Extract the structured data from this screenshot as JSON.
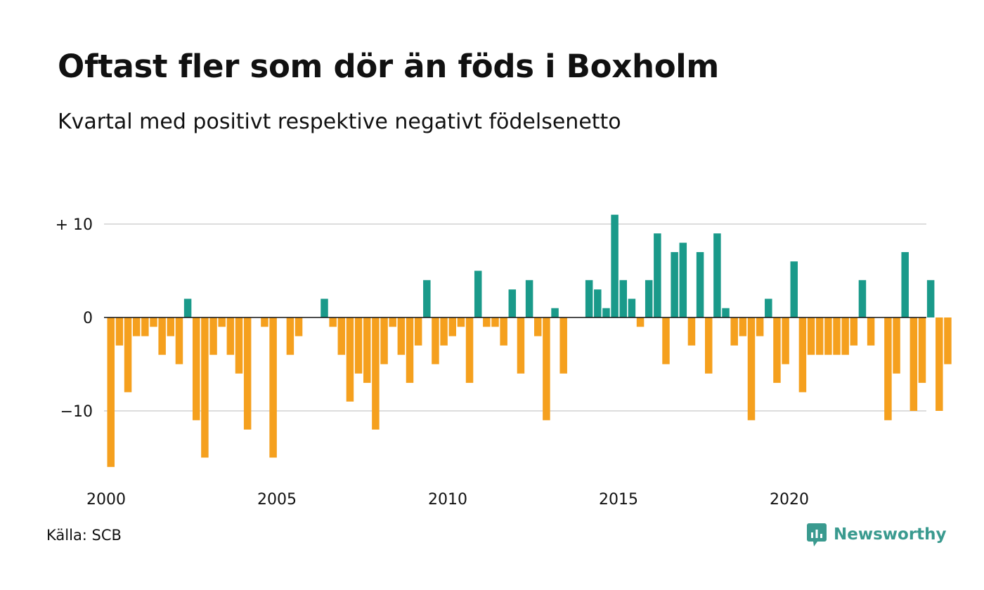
{
  "header": {
    "title": "Oftast fler som dör än föds i Boxholm",
    "subtitle": "Kvartal med positivt respektive negativt födelsenetto"
  },
  "footer": {
    "source": "Källa: SCB",
    "brand": "Newsworthy",
    "brand_icon": "newsworthy-logo-icon"
  },
  "colors": {
    "positive": "#1a9a8a",
    "negative": "#f5a01e",
    "grid": "#dddddd",
    "zero_line": "#111111",
    "brand": "#3a9a8f"
  },
  "chart_data": {
    "type": "bar",
    "x_start_year": 2000,
    "x_start_quarter": 1,
    "periods_per_year": 4,
    "values": [
      -16,
      -3,
      -8,
      -2,
      -2,
      -1,
      -4,
      -2,
      -5,
      2,
      -11,
      -15,
      -4,
      -1,
      -4,
      -6,
      -12,
      0,
      -1,
      -15,
      0,
      -4,
      -2,
      0,
      0,
      2,
      -1,
      -4,
      -9,
      -6,
      -7,
      -12,
      -5,
      -1,
      -4,
      -7,
      -3,
      4,
      -5,
      -3,
      -2,
      -1,
      -7,
      5,
      -1,
      -1,
      -3,
      3,
      -6,
      4,
      -2,
      -11,
      1,
      -6,
      0,
      0,
      4,
      3,
      1,
      11,
      4,
      2,
      -1,
      4,
      9,
      -5,
      7,
      8,
      -3,
      7,
      -6,
      9,
      1,
      -3,
      -2,
      -11,
      -2,
      2,
      -7,
      -5,
      6,
      -8,
      -4,
      -4,
      -4,
      -4,
      -4,
      -3,
      4,
      -3,
      0,
      -11,
      -6,
      7,
      -10,
      -7,
      4,
      -10,
      -5
    ],
    "y_ticks": [
      10,
      0,
      -10
    ],
    "y_tick_labels": [
      "+ 10",
      "0",
      "−10"
    ],
    "x_ticks": [
      2000,
      2005,
      2010,
      2015,
      2020
    ],
    "x_tick_labels": [
      "2000",
      "2005",
      "2010",
      "2015",
      "2020"
    ],
    "ylim": [
      -16,
      11
    ],
    "grid": true,
    "legend": "none"
  }
}
